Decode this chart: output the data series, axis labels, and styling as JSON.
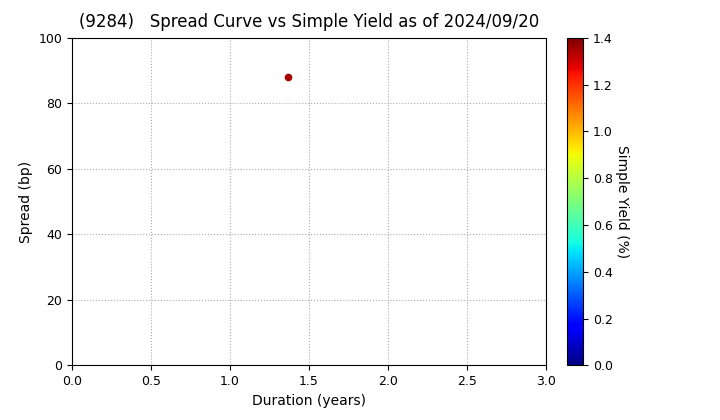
{
  "title": "(9284)   Spread Curve vs Simple Yield as of 2024/09/20",
  "xlabel": "Duration (years)",
  "ylabel": "Spread (bp)",
  "colorbar_label": "Simple Yield (%)",
  "xlim": [
    0.0,
    3.0
  ],
  "ylim": [
    0.0,
    100.0
  ],
  "xticks": [
    0.0,
    0.5,
    1.0,
    1.5,
    2.0,
    2.5,
    3.0
  ],
  "yticks": [
    0,
    20,
    40,
    60,
    80,
    100
  ],
  "colorbar_ticks": [
    0.0,
    0.2,
    0.4,
    0.6,
    0.8,
    1.0,
    1.2,
    1.4
  ],
  "colorbar_vmin": 0.0,
  "colorbar_vmax": 1.4,
  "scatter_x": [
    1.37
  ],
  "scatter_y": [
    88.0
  ],
  "scatter_color": [
    1.35
  ],
  "scatter_size": 20,
  "grid_color": "#aaaaaa",
  "grid_style": "dotted",
  "background_color": "#ffffff",
  "title_fontsize": 12,
  "axis_fontsize": 10,
  "tick_fontsize": 9,
  "colormap": "jet"
}
